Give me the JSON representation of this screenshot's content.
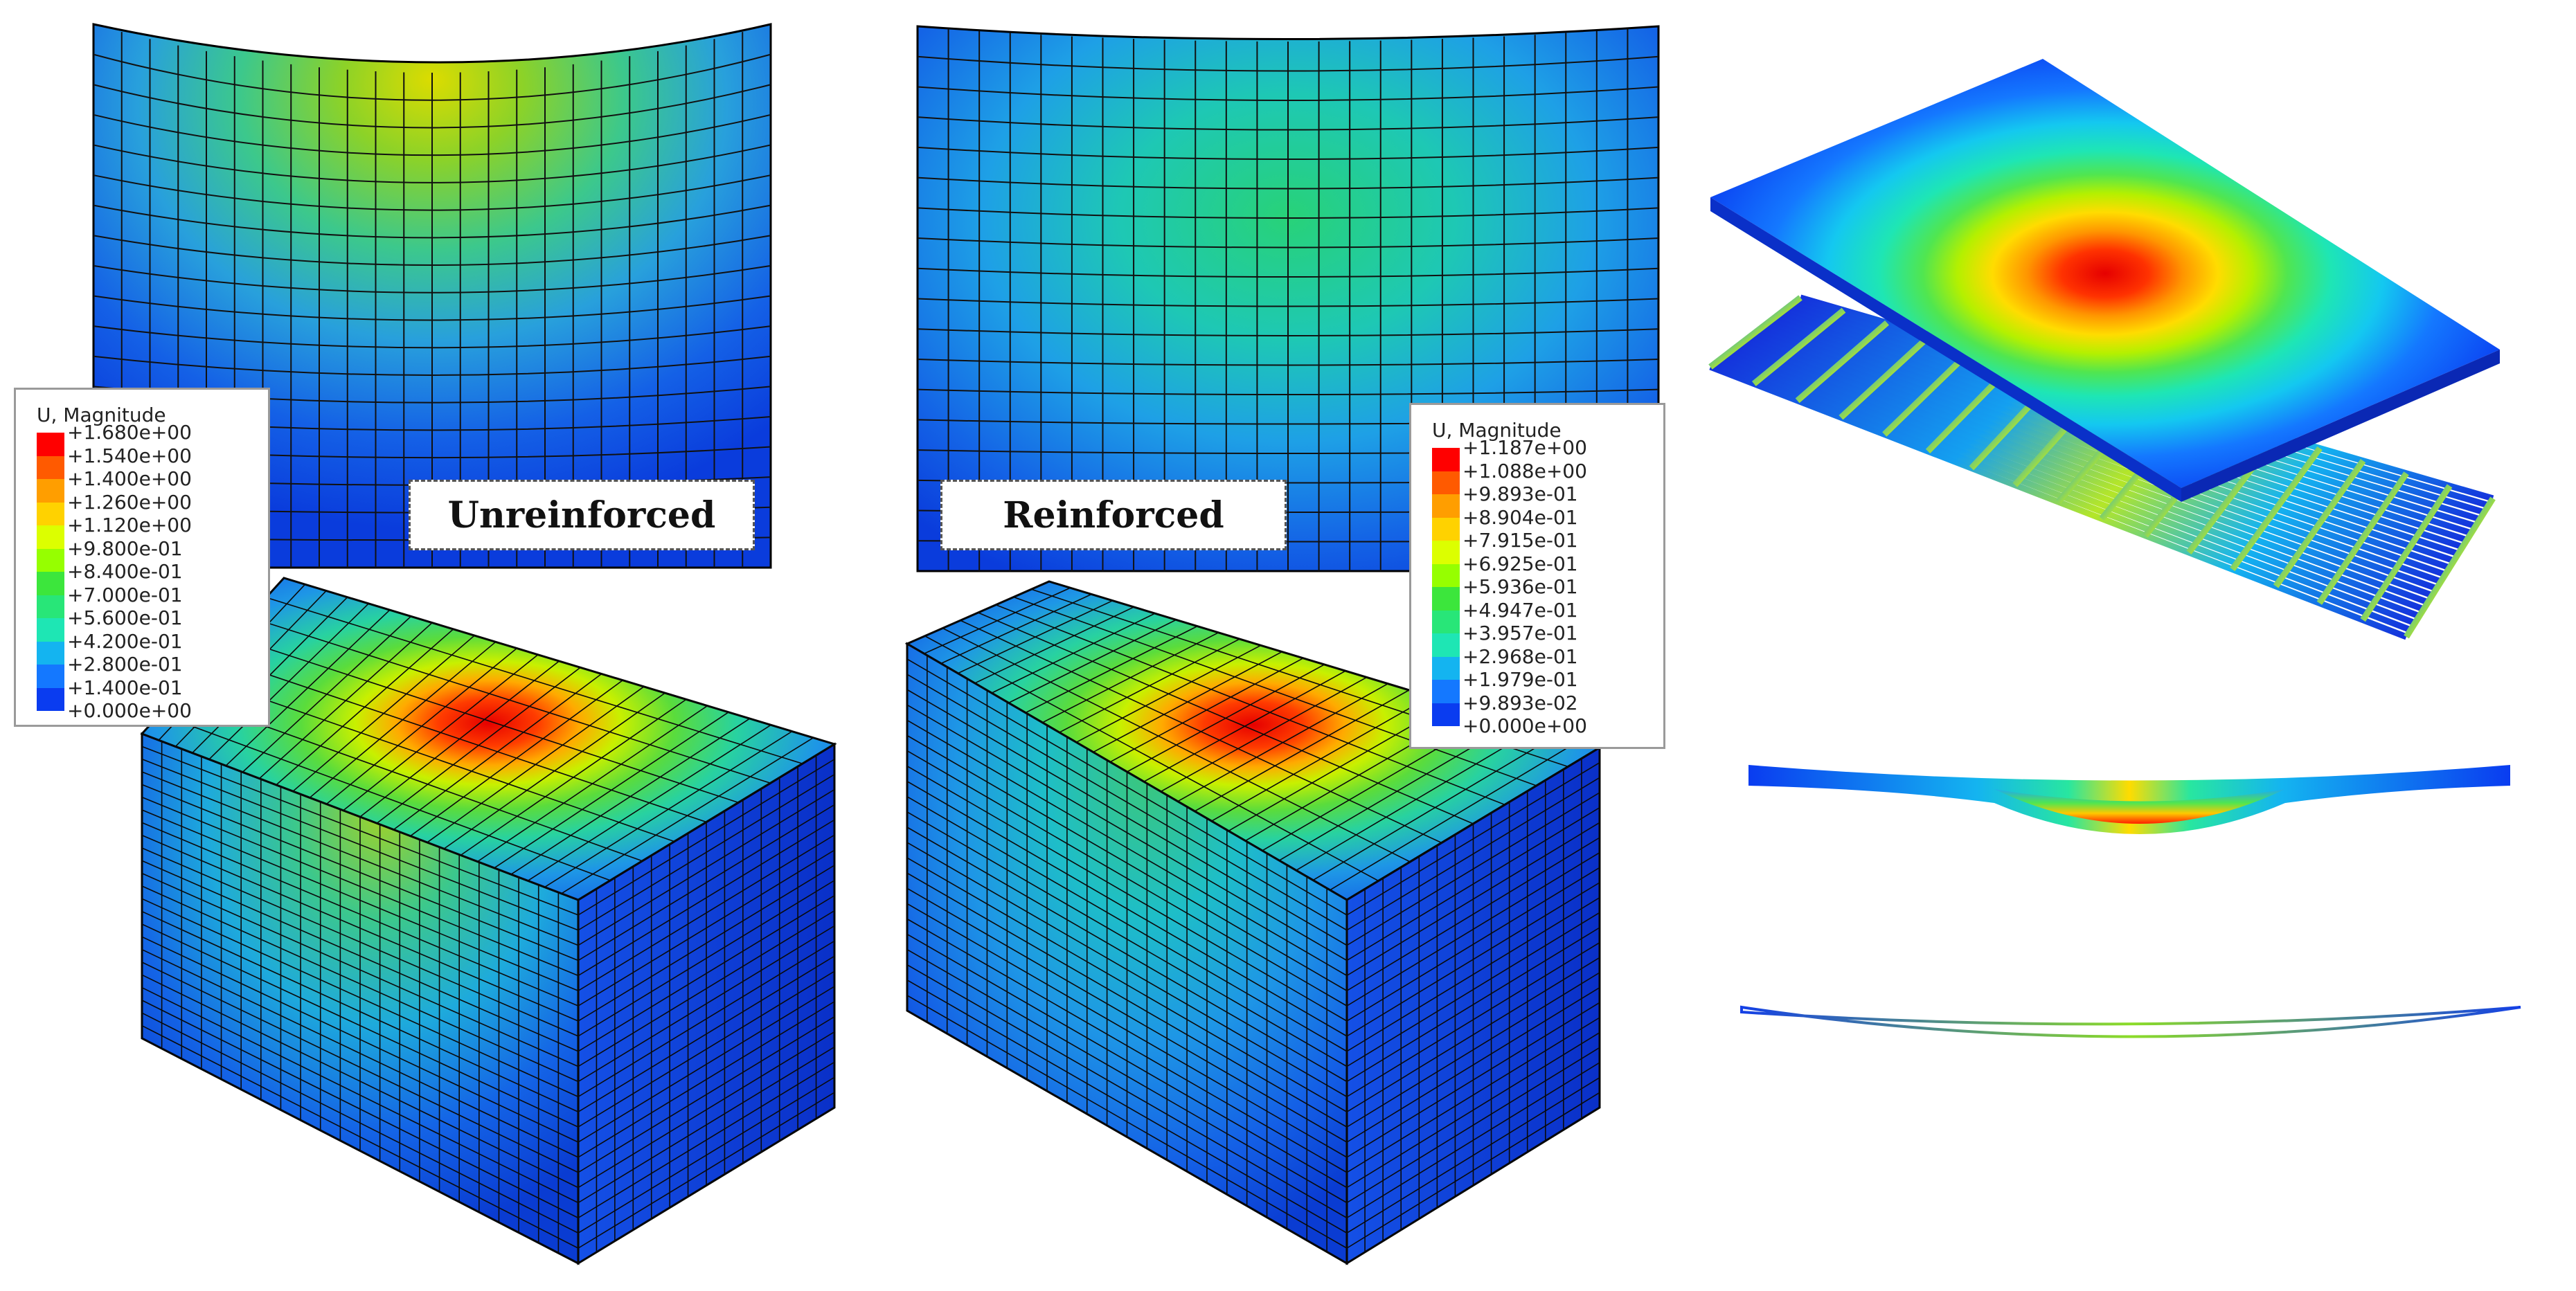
{
  "panels": {
    "unreinforced_label": "Unreinforced",
    "reinforced_label": "Reinforced"
  },
  "legend_unreinforced": {
    "title": "U, Magnitude",
    "ticks": [
      "+1.680e+00",
      "+1.540e+00",
      "+1.400e+00",
      "+1.260e+00",
      "+1.120e+00",
      "+9.800e-01",
      "+8.400e-01",
      "+7.000e-01",
      "+5.600e-01",
      "+4.200e-01",
      "+2.800e-01",
      "+1.400e-01",
      "+0.000e+00"
    ]
  },
  "legend_reinforced": {
    "title": "U, Magnitude",
    "ticks": [
      "+1.187e+00",
      "+1.088e+00",
      "+9.893e-01",
      "+8.904e-01",
      "+7.915e-01",
      "+6.925e-01",
      "+5.936e-01",
      "+4.947e-01",
      "+3.957e-01",
      "+2.968e-01",
      "+1.979e-01",
      "+9.893e-02",
      "+0.000e+00"
    ]
  },
  "colorscale": [
    "#ff0000",
    "#ff5a00",
    "#ff9e00",
    "#ffd200",
    "#dcff00",
    "#96ff00",
    "#3ce63c",
    "#28e678",
    "#1ee6b4",
    "#14b4f0",
    "#1478ff",
    "#0a3cf0"
  ]
}
